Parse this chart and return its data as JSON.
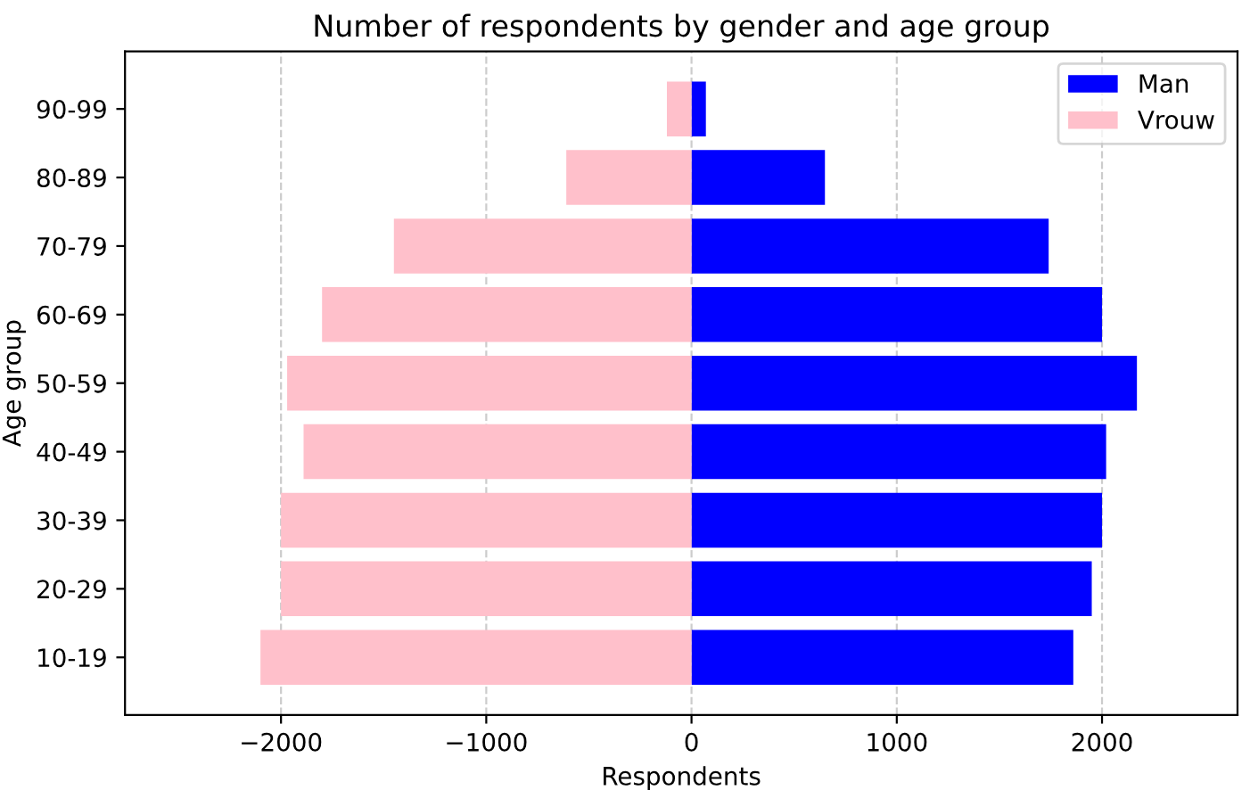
{
  "chart_data": {
    "type": "bar",
    "orientation": "horizontal",
    "title": "Number of respondents by gender and age group",
    "xlabel": "Respondents",
    "ylabel": "Age group",
    "categories": [
      "90-99",
      "80-89",
      "70-79",
      "60-69",
      "50-59",
      "40-49",
      "30-39",
      "20-29",
      "10-19"
    ],
    "series": [
      {
        "name": "Man",
        "color": "#0000ff",
        "values": [
          70,
          650,
          1740,
          2000,
          2170,
          2020,
          2000,
          1950,
          1860
        ]
      },
      {
        "name": "Vrouw",
        "color": "#ffc0cb",
        "values": [
          -120,
          -610,
          -1450,
          -1800,
          -1970,
          -1890,
          -2000,
          -2000,
          -2100
        ]
      }
    ],
    "xlim": [
      -2760,
      2660
    ],
    "xticks": [
      {
        "value": -2000,
        "label": "−2000"
      },
      {
        "value": -1000,
        "label": "−1000"
      },
      0,
      1000,
      2000
    ],
    "stacked": true,
    "grid": "x",
    "line_style": "dashed",
    "legend": "upper right"
  }
}
